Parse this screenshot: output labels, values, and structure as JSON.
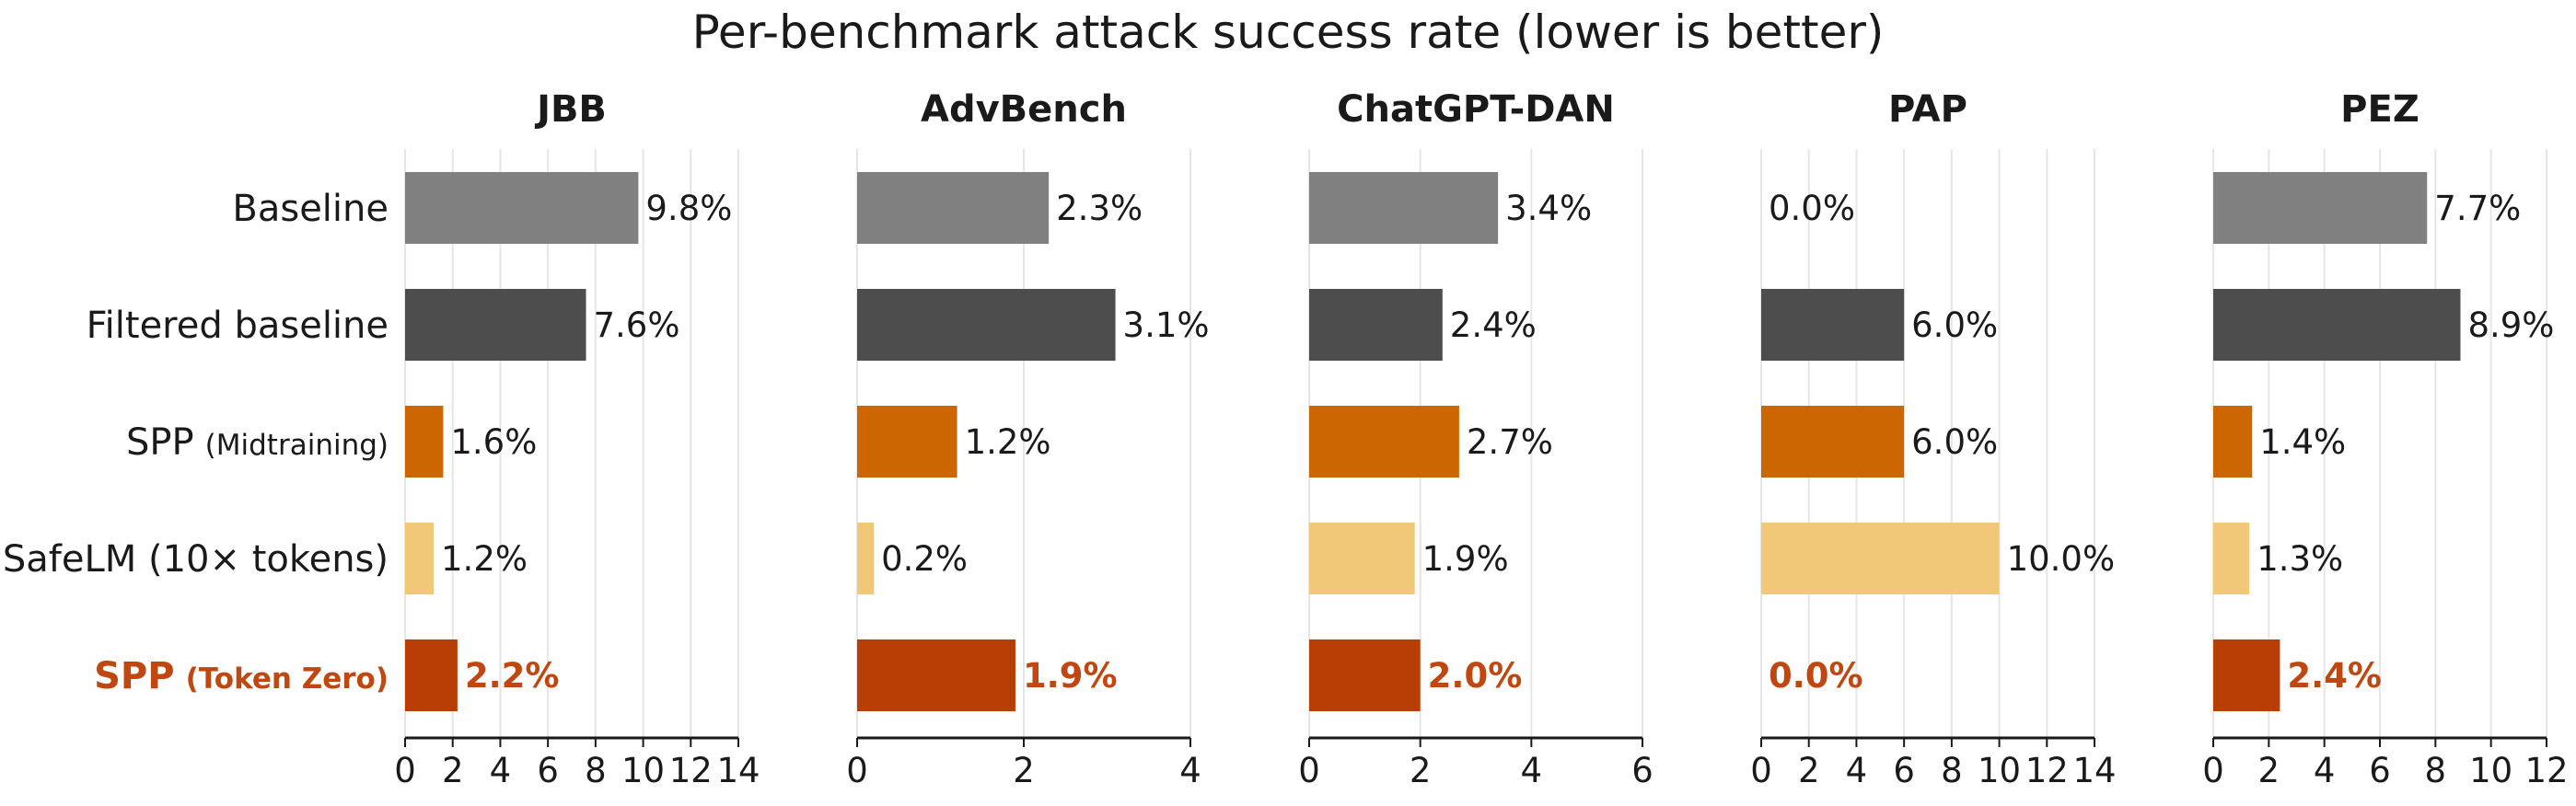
{
  "title": "Per-benchmark attack success rate (lower is better)",
  "categories": [
    {
      "main": "Baseline",
      "sub": "",
      "highlight": false
    },
    {
      "main": "Filtered baseline",
      "sub": "",
      "highlight": false
    },
    {
      "main": "SPP",
      "sub": "(Midtraining)",
      "highlight": false
    },
    {
      "main": "SafeLM (10× tokens)",
      "sub": "",
      "highlight": false
    },
    {
      "main": "SPP",
      "sub": "(Token Zero)",
      "highlight": true
    }
  ],
  "colors": [
    "#808080",
    "#4d4d4d",
    "#cc6600",
    "#f0c878",
    "#b83e05"
  ],
  "highlight_label_color": "#c0470f",
  "chart_data": [
    {
      "type": "bar",
      "orientation": "horizontal",
      "title": "JBB",
      "categories": [
        "Baseline",
        "Filtered baseline",
        "SPP (Midtraining)",
        "SafeLM (10× tokens)",
        "SPP (Token Zero)"
      ],
      "values": [
        9.8,
        7.6,
        1.6,
        1.2,
        2.2
      ],
      "labels": [
        "9.8%",
        "7.6%",
        "1.6%",
        "1.2%",
        "2.2%"
      ],
      "xlim": [
        0,
        14
      ],
      "xticks": [
        0,
        2,
        4,
        6,
        8,
        10,
        12,
        14
      ],
      "grid": true
    },
    {
      "type": "bar",
      "orientation": "horizontal",
      "title": "AdvBench",
      "categories": [
        "Baseline",
        "Filtered baseline",
        "SPP (Midtraining)",
        "SafeLM (10× tokens)",
        "SPP (Token Zero)"
      ],
      "values": [
        2.3,
        3.1,
        1.2,
        0.2,
        1.9
      ],
      "labels": [
        "2.3%",
        "3.1%",
        "1.2%",
        "0.2%",
        "1.9%"
      ],
      "xlim": [
        0,
        4
      ],
      "xticks": [
        0,
        2,
        4
      ],
      "grid": true
    },
    {
      "type": "bar",
      "orientation": "horizontal",
      "title": "ChatGPT-DAN",
      "categories": [
        "Baseline",
        "Filtered baseline",
        "SPP (Midtraining)",
        "SafeLM (10× tokens)",
        "SPP (Token Zero)"
      ],
      "values": [
        3.4,
        2.4,
        2.7,
        1.9,
        2.0
      ],
      "labels": [
        "3.4%",
        "2.4%",
        "2.7%",
        "1.9%",
        "2.0%"
      ],
      "xlim": [
        0,
        6
      ],
      "xticks": [
        0,
        2,
        4,
        6
      ],
      "grid": true
    },
    {
      "type": "bar",
      "orientation": "horizontal",
      "title": "PAP",
      "categories": [
        "Baseline",
        "Filtered baseline",
        "SPP (Midtraining)",
        "SafeLM (10× tokens)",
        "SPP (Token Zero)"
      ],
      "values": [
        0.0,
        6.0,
        6.0,
        10.0,
        0.0
      ],
      "labels": [
        "0.0%",
        "6.0%",
        "6.0%",
        "10.0%",
        "0.0%"
      ],
      "xlim": [
        0,
        14
      ],
      "xticks": [
        0,
        2,
        4,
        6,
        8,
        10,
        12,
        14
      ],
      "grid": true
    },
    {
      "type": "bar",
      "orientation": "horizontal",
      "title": "PEZ",
      "categories": [
        "Baseline",
        "Filtered baseline",
        "SPP (Midtraining)",
        "SafeLM (10× tokens)",
        "SPP (Token Zero)"
      ],
      "values": [
        7.7,
        8.9,
        1.4,
        1.3,
        2.4
      ],
      "labels": [
        "7.7%",
        "8.9%",
        "1.4%",
        "1.3%",
        "2.4%"
      ],
      "xlim": [
        0,
        12
      ],
      "xticks": [
        0,
        2,
        4,
        6,
        8,
        10,
        12
      ],
      "grid": true
    }
  ]
}
